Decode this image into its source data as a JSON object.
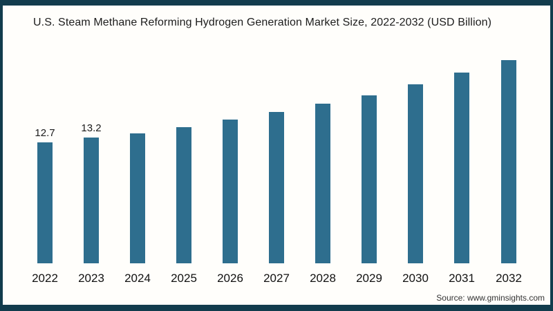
{
  "header": {
    "title": "U.S. Steam Methane Reforming Hydrogen Generation Market Size, 2022-2032 (USD Billion)"
  },
  "footer": {
    "source": "Source: www.gminsights.com"
  },
  "colors": {
    "bar": "#2e6e8e",
    "frame": "#123c4d",
    "background": "#fffefb",
    "title_text": "#1c1c1c",
    "axis_text": "#111111",
    "source_text": "#333333"
  },
  "chart_data": {
    "type": "bar",
    "title": "U.S. Steam Methane Reforming Hydrogen Generation Market Size, 2022-2032 (USD Billion)",
    "categories": [
      "2022",
      "2023",
      "2024",
      "2025",
      "2026",
      "2027",
      "2028",
      "2029",
      "2030",
      "2031",
      "2032"
    ],
    "values": [
      12.7,
      13.2,
      13.7,
      14.3,
      15.1,
      15.9,
      16.8,
      17.7,
      18.8,
      20.1,
      21.4
    ],
    "data_labels": [
      "12.7",
      "13.2",
      "",
      "",
      "",
      "",
      "",
      "",
      "",
      "",
      ""
    ],
    "xlabel": "",
    "ylabel": "",
    "ylim": [
      0,
      24
    ],
    "grid": false,
    "legend": false,
    "axis_lines": false,
    "bar_color": "#2e6e8e",
    "source": "Source: www.gminsights.com"
  }
}
